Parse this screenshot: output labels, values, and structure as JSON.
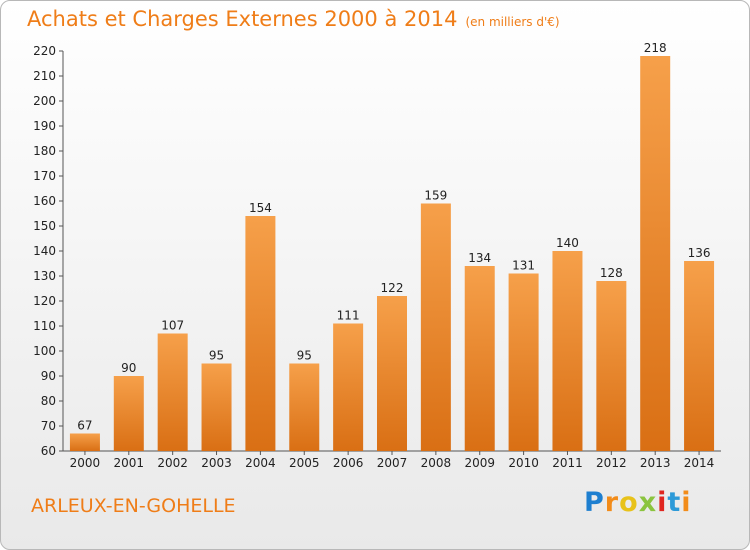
{
  "title": "Achats et Charges Externes 2000 à 2014",
  "subtitle": "(en milliers d'€)",
  "commune": "ARLEUX-EN-GOHELLE",
  "logo": {
    "letters": [
      "P",
      "r",
      "o",
      "x",
      "i",
      "t",
      "i"
    ],
    "colors": [
      "#1e7fd0",
      "#f28c1a",
      "#e8c21a",
      "#8bc43f",
      "#e0261f",
      "#2d9ad8",
      "#f28c1a"
    ]
  },
  "chart_data": {
    "type": "bar",
    "title": "Achats et Charges Externes 2000 à 2014",
    "subtitle": "(en milliers d'€)",
    "xlabel": "",
    "ylabel": "",
    "categories": [
      "2000",
      "2001",
      "2002",
      "2003",
      "2004",
      "2005",
      "2006",
      "2007",
      "2008",
      "2009",
      "2010",
      "2011",
      "2012",
      "2013",
      "2014"
    ],
    "values": [
      67,
      90,
      107,
      95,
      154,
      95,
      111,
      122,
      159,
      134,
      131,
      140,
      128,
      218,
      136
    ],
    "value_labels": [
      "67",
      "90",
      "107",
      "95",
      "154",
      "95",
      "111",
      "122",
      "159",
      "134",
      "131",
      "140",
      "128",
      "218",
      "136"
    ],
    "yticks": [
      "60",
      "70",
      "80",
      "90",
      "100",
      "110",
      "120",
      "130",
      "140",
      "150",
      "160",
      "170",
      "180",
      "190",
      "200",
      "210",
      "220"
    ],
    "ylim": [
      60,
      220
    ],
    "grid": false,
    "bar_color": "#ef8a25",
    "legend": "none"
  }
}
